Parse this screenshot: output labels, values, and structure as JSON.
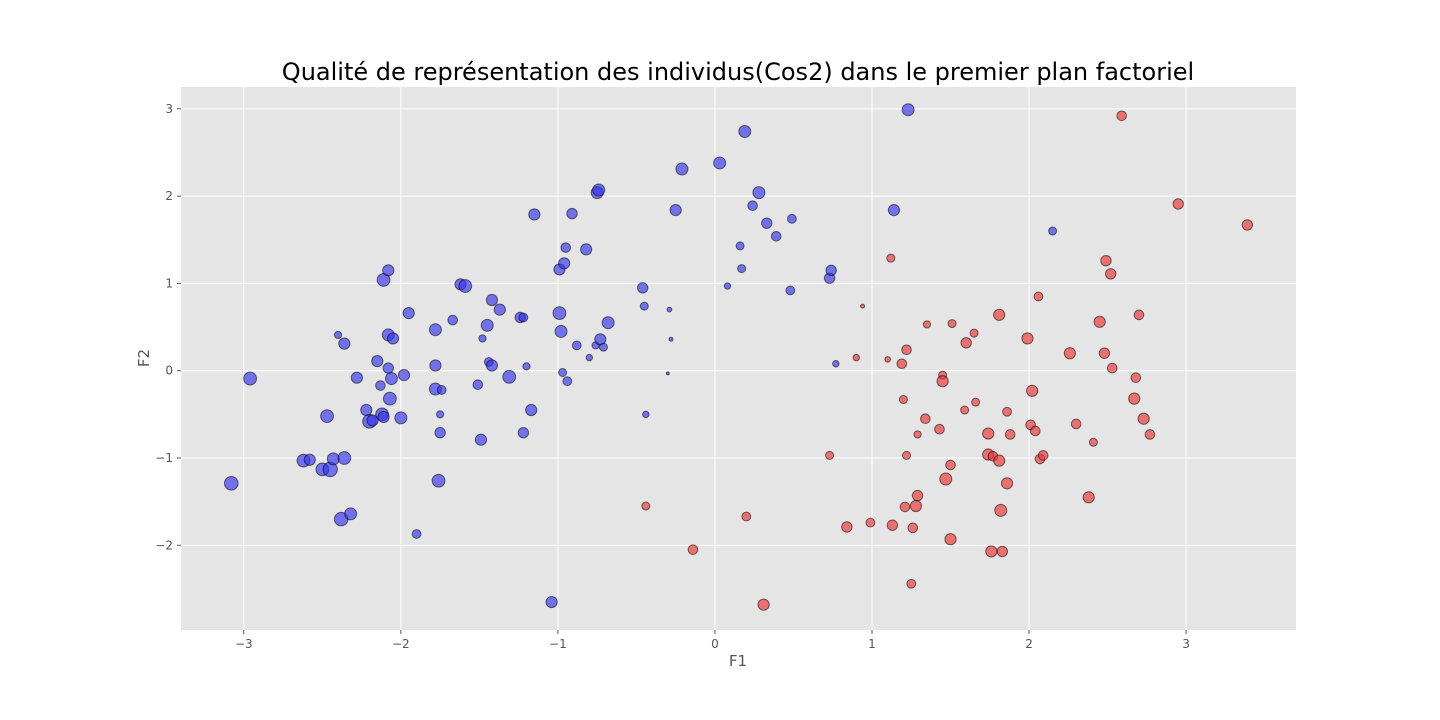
{
  "chart_data": {
    "type": "scatter",
    "title": "Qualité de représentation des individus(Cos2) dans le premier plan factoriel",
    "xlabel": "F1",
    "ylabel": "F2",
    "xlim": [
      -3.4,
      3.7
    ],
    "ylim": [
      -2.97,
      3.25
    ],
    "xticks": [
      -3,
      -2,
      -1,
      0,
      1,
      2,
      3
    ],
    "yticks": [
      -2,
      -1,
      0,
      1,
      2,
      3
    ],
    "xtick_labels": [
      "−3",
      "−2",
      "−1",
      "0",
      "1",
      "2",
      "3"
    ],
    "ytick_labels": [
      "−2",
      "−1",
      "0",
      "1",
      "2",
      "3"
    ],
    "grid": true,
    "marker_size_encodes": "Cos2",
    "colors": {
      "background": "#e5e5e5",
      "group_blue": "#3333ee",
      "group_red": "#ee3333"
    },
    "series": [
      {
        "color": "#3333ee",
        "points": [
          {
            "x": -3.08,
            "y": -1.29,
            "cos2": 0.85
          },
          {
            "x": -2.96,
            "y": -0.09,
            "cos2": 0.8
          },
          {
            "x": -2.62,
            "y": -1.03,
            "cos2": 0.8
          },
          {
            "x": -2.58,
            "y": -1.02,
            "cos2": 0.7
          },
          {
            "x": -2.5,
            "y": -1.13,
            "cos2": 0.8
          },
          {
            "x": -2.45,
            "y": -1.13,
            "cos2": 0.9
          },
          {
            "x": -2.47,
            "y": -0.52,
            "cos2": 0.8
          },
          {
            "x": -2.43,
            "y": -1.01,
            "cos2": 0.75
          },
          {
            "x": -2.4,
            "y": 0.41,
            "cos2": 0.45
          },
          {
            "x": -2.38,
            "y": -1.7,
            "cos2": 0.85
          },
          {
            "x": -2.36,
            "y": 0.31,
            "cos2": 0.7
          },
          {
            "x": -2.36,
            "y": -1.0,
            "cos2": 0.8
          },
          {
            "x": -2.32,
            "y": -1.64,
            "cos2": 0.75
          },
          {
            "x": -2.28,
            "y": -0.08,
            "cos2": 0.7
          },
          {
            "x": -2.22,
            "y": -0.45,
            "cos2": 0.7
          },
          {
            "x": -2.2,
            "y": -0.58,
            "cos2": 0.85
          },
          {
            "x": -2.18,
            "y": -0.57,
            "cos2": 0.7
          },
          {
            "x": -2.15,
            "y": 0.11,
            "cos2": 0.7
          },
          {
            "x": -2.13,
            "y": -0.17,
            "cos2": 0.6
          },
          {
            "x": -2.12,
            "y": -0.5,
            "cos2": 0.8
          },
          {
            "x": -2.11,
            "y": 1.04,
            "cos2": 0.8
          },
          {
            "x": -2.11,
            "y": -0.53,
            "cos2": 0.7
          },
          {
            "x": -2.08,
            "y": 0.41,
            "cos2": 0.75
          },
          {
            "x": -2.08,
            "y": 1.15,
            "cos2": 0.7
          },
          {
            "x": -2.08,
            "y": 0.03,
            "cos2": 0.65
          },
          {
            "x": -2.07,
            "y": -0.32,
            "cos2": 0.8
          },
          {
            "x": -2.06,
            "y": -0.09,
            "cos2": 0.75
          },
          {
            "x": -2.05,
            "y": 0.37,
            "cos2": 0.7
          },
          {
            "x": -2.0,
            "y": -0.54,
            "cos2": 0.75
          },
          {
            "x": -1.98,
            "y": -0.05,
            "cos2": 0.7
          },
          {
            "x": -1.95,
            "y": 0.66,
            "cos2": 0.7
          },
          {
            "x": -1.9,
            "y": -1.87,
            "cos2": 0.55
          },
          {
            "x": -1.78,
            "y": 0.47,
            "cos2": 0.75
          },
          {
            "x": -1.78,
            "y": 0.06,
            "cos2": 0.7
          },
          {
            "x": -1.78,
            "y": -0.21,
            "cos2": 0.75
          },
          {
            "x": -1.76,
            "y": -1.26,
            "cos2": 0.8
          },
          {
            "x": -1.75,
            "y": -0.71,
            "cos2": 0.65
          },
          {
            "x": -1.75,
            "y": -0.5,
            "cos2": 0.45
          },
          {
            "x": -1.74,
            "y": -0.22,
            "cos2": 0.55
          },
          {
            "x": -1.67,
            "y": 0.58,
            "cos2": 0.6
          },
          {
            "x": -1.62,
            "y": 0.99,
            "cos2": 0.7
          },
          {
            "x": -1.59,
            "y": 0.97,
            "cos2": 0.8
          },
          {
            "x": -1.51,
            "y": -0.16,
            "cos2": 0.6
          },
          {
            "x": -1.49,
            "y": -0.79,
            "cos2": 0.7
          },
          {
            "x": -1.48,
            "y": 0.37,
            "cos2": 0.45
          },
          {
            "x": -1.45,
            "y": 0.52,
            "cos2": 0.75
          },
          {
            "x": -1.44,
            "y": 0.1,
            "cos2": 0.55
          },
          {
            "x": -1.42,
            "y": 0.81,
            "cos2": 0.7
          },
          {
            "x": -1.42,
            "y": 0.06,
            "cos2": 0.7
          },
          {
            "x": -1.37,
            "y": 0.7,
            "cos2": 0.7
          },
          {
            "x": -1.31,
            "y": -0.07,
            "cos2": 0.8
          },
          {
            "x": -1.24,
            "y": 0.61,
            "cos2": 0.65
          },
          {
            "x": -1.22,
            "y": 0.61,
            "cos2": 0.55
          },
          {
            "x": -1.22,
            "y": -0.71,
            "cos2": 0.65
          },
          {
            "x": -1.2,
            "y": 0.05,
            "cos2": 0.45
          },
          {
            "x": -1.17,
            "y": -0.45,
            "cos2": 0.7
          },
          {
            "x": -1.15,
            "y": 1.79,
            "cos2": 0.7
          },
          {
            "x": -1.04,
            "y": -2.65,
            "cos2": 0.7
          },
          {
            "x": -0.99,
            "y": 0.66,
            "cos2": 0.8
          },
          {
            "x": -0.99,
            "y": 1.16,
            "cos2": 0.7
          },
          {
            "x": -0.98,
            "y": 0.45,
            "cos2": 0.75
          },
          {
            "x": -0.97,
            "y": -0.02,
            "cos2": 0.5
          },
          {
            "x": -0.96,
            "y": 1.23,
            "cos2": 0.7
          },
          {
            "x": -0.95,
            "y": 1.41,
            "cos2": 0.6
          },
          {
            "x": -0.94,
            "y": -0.12,
            "cos2": 0.55
          },
          {
            "x": -0.91,
            "y": 1.8,
            "cos2": 0.65
          },
          {
            "x": -0.88,
            "y": 0.29,
            "cos2": 0.55
          },
          {
            "x": -0.82,
            "y": 1.39,
            "cos2": 0.7
          },
          {
            "x": -0.8,
            "y": 0.15,
            "cos2": 0.4
          },
          {
            "x": -0.76,
            "y": 0.29,
            "cos2": 0.45
          },
          {
            "x": -0.75,
            "y": 2.04,
            "cos2": 0.75
          },
          {
            "x": -0.74,
            "y": 2.07,
            "cos2": 0.75
          },
          {
            "x": -0.73,
            "y": 0.36,
            "cos2": 0.7
          },
          {
            "x": -0.71,
            "y": 0.27,
            "cos2": 0.5
          },
          {
            "x": -0.68,
            "y": 0.55,
            "cos2": 0.75
          },
          {
            "x": -0.46,
            "y": 0.95,
            "cos2": 0.65
          },
          {
            "x": -0.45,
            "y": 0.74,
            "cos2": 0.5
          },
          {
            "x": -0.44,
            "y": -0.5,
            "cos2": 0.4
          },
          {
            "x": -0.29,
            "y": 0.7,
            "cos2": 0.3
          },
          {
            "x": -0.28,
            "y": 0.36,
            "cos2": 0.25
          },
          {
            "x": -0.3,
            "y": -0.03,
            "cos2": 0.12
          },
          {
            "x": -0.25,
            "y": 1.84,
            "cos2": 0.7
          },
          {
            "x": -0.21,
            "y": 2.31,
            "cos2": 0.75
          },
          {
            "x": 0.03,
            "y": 2.38,
            "cos2": 0.75
          },
          {
            "x": 0.08,
            "y": 0.97,
            "cos2": 0.4
          },
          {
            "x": 0.16,
            "y": 1.43,
            "cos2": 0.5
          },
          {
            "x": 0.17,
            "y": 1.17,
            "cos2": 0.5
          },
          {
            "x": 0.19,
            "y": 2.74,
            "cos2": 0.75
          },
          {
            "x": 0.24,
            "y": 1.89,
            "cos2": 0.6
          },
          {
            "x": 0.28,
            "y": 2.04,
            "cos2": 0.75
          },
          {
            "x": 0.33,
            "y": 1.69,
            "cos2": 0.65
          },
          {
            "x": 0.39,
            "y": 1.54,
            "cos2": 0.6
          },
          {
            "x": 0.48,
            "y": 0.92,
            "cos2": 0.55
          },
          {
            "x": 0.49,
            "y": 1.74,
            "cos2": 0.55
          },
          {
            "x": 0.73,
            "y": 1.06,
            "cos2": 0.65
          },
          {
            "x": 0.74,
            "y": 1.15,
            "cos2": 0.65
          },
          {
            "x": 0.77,
            "y": 0.08,
            "cos2": 0.4
          },
          {
            "x": 1.14,
            "y": 1.84,
            "cos2": 0.7
          },
          {
            "x": 1.23,
            "y": 2.99,
            "cos2": 0.75
          },
          {
            "x": 2.15,
            "y": 1.6,
            "cos2": 0.5
          }
        ]
      },
      {
        "color": "#ee3333",
        "points": [
          {
            "x": -0.44,
            "y": -1.55,
            "cos2": 0.5
          },
          {
            "x": -0.14,
            "y": -2.05,
            "cos2": 0.6
          },
          {
            "x": 0.2,
            "y": -1.67,
            "cos2": 0.55
          },
          {
            "x": 0.31,
            "y": -2.68,
            "cos2": 0.7
          },
          {
            "x": 0.73,
            "y": -0.97,
            "cos2": 0.5
          },
          {
            "x": 0.84,
            "y": -1.79,
            "cos2": 0.65
          },
          {
            "x": 0.9,
            "y": 0.15,
            "cos2": 0.4
          },
          {
            "x": 0.94,
            "y": 0.74,
            "cos2": 0.25
          },
          {
            "x": 0.99,
            "y": -1.74,
            "cos2": 0.55
          },
          {
            "x": 1.1,
            "y": 0.13,
            "cos2": 0.35
          },
          {
            "x": 1.12,
            "y": 1.29,
            "cos2": 0.5
          },
          {
            "x": 1.13,
            "y": -1.77,
            "cos2": 0.65
          },
          {
            "x": 1.19,
            "y": 0.08,
            "cos2": 0.6
          },
          {
            "x": 1.2,
            "y": -0.33,
            "cos2": 0.5
          },
          {
            "x": 1.21,
            "y": -1.56,
            "cos2": 0.6
          },
          {
            "x": 1.22,
            "y": 0.24,
            "cos2": 0.6
          },
          {
            "x": 1.22,
            "y": -0.97,
            "cos2": 0.5
          },
          {
            "x": 1.25,
            "y": -2.44,
            "cos2": 0.55
          },
          {
            "x": 1.26,
            "y": -1.8,
            "cos2": 0.6
          },
          {
            "x": 1.28,
            "y": -1.55,
            "cos2": 0.7
          },
          {
            "x": 1.29,
            "y": -1.43,
            "cos2": 0.65
          },
          {
            "x": 1.29,
            "y": -0.73,
            "cos2": 0.45
          },
          {
            "x": 1.34,
            "y": -0.55,
            "cos2": 0.6
          },
          {
            "x": 1.35,
            "y": 0.53,
            "cos2": 0.45
          },
          {
            "x": 1.43,
            "y": -0.67,
            "cos2": 0.6
          },
          {
            "x": 1.45,
            "y": -0.05,
            "cos2": 0.5
          },
          {
            "x": 1.45,
            "y": -0.12,
            "cos2": 0.7
          },
          {
            "x": 1.47,
            "y": -1.24,
            "cos2": 0.75
          },
          {
            "x": 1.5,
            "y": -1.08,
            "cos2": 0.6
          },
          {
            "x": 1.5,
            "y": -1.93,
            "cos2": 0.7
          },
          {
            "x": 1.51,
            "y": 0.54,
            "cos2": 0.5
          },
          {
            "x": 1.59,
            "y": -0.45,
            "cos2": 0.5
          },
          {
            "x": 1.6,
            "y": 0.32,
            "cos2": 0.65
          },
          {
            "x": 1.65,
            "y": 0.43,
            "cos2": 0.5
          },
          {
            "x": 1.66,
            "y": -0.36,
            "cos2": 0.5
          },
          {
            "x": 1.74,
            "y": -0.72,
            "cos2": 0.7
          },
          {
            "x": 1.74,
            "y": -0.96,
            "cos2": 0.7
          },
          {
            "x": 1.76,
            "y": -2.07,
            "cos2": 0.7
          },
          {
            "x": 1.77,
            "y": -0.98,
            "cos2": 0.6
          },
          {
            "x": 1.81,
            "y": 0.64,
            "cos2": 0.7
          },
          {
            "x": 1.81,
            "y": -1.03,
            "cos2": 0.7
          },
          {
            "x": 1.82,
            "y": -1.6,
            "cos2": 0.75
          },
          {
            "x": 1.83,
            "y": -2.07,
            "cos2": 0.65
          },
          {
            "x": 1.86,
            "y": -0.47,
            "cos2": 0.55
          },
          {
            "x": 1.86,
            "y": -1.29,
            "cos2": 0.7
          },
          {
            "x": 1.88,
            "y": -0.73,
            "cos2": 0.6
          },
          {
            "x": 1.99,
            "y": 0.37,
            "cos2": 0.7
          },
          {
            "x": 2.01,
            "y": -0.62,
            "cos2": 0.6
          },
          {
            "x": 2.02,
            "y": -0.23,
            "cos2": 0.7
          },
          {
            "x": 2.04,
            "y": -0.69,
            "cos2": 0.6
          },
          {
            "x": 2.06,
            "y": 0.85,
            "cos2": 0.55
          },
          {
            "x": 2.07,
            "y": -1.01,
            "cos2": 0.6
          },
          {
            "x": 2.09,
            "y": -0.97,
            "cos2": 0.6
          },
          {
            "x": 2.26,
            "y": 0.2,
            "cos2": 0.7
          },
          {
            "x": 2.3,
            "y": -0.61,
            "cos2": 0.6
          },
          {
            "x": 2.38,
            "y": -1.45,
            "cos2": 0.7
          },
          {
            "x": 2.41,
            "y": -0.82,
            "cos2": 0.5
          },
          {
            "x": 2.45,
            "y": 0.56,
            "cos2": 0.7
          },
          {
            "x": 2.48,
            "y": 0.2,
            "cos2": 0.65
          },
          {
            "x": 2.49,
            "y": 1.26,
            "cos2": 0.65
          },
          {
            "x": 2.52,
            "y": 1.11,
            "cos2": 0.65
          },
          {
            "x": 2.53,
            "y": 0.03,
            "cos2": 0.6
          },
          {
            "x": 2.59,
            "y": 2.92,
            "cos2": 0.6
          },
          {
            "x": 2.67,
            "y": -0.32,
            "cos2": 0.7
          },
          {
            "x": 2.68,
            "y": -0.08,
            "cos2": 0.6
          },
          {
            "x": 2.7,
            "y": 0.64,
            "cos2": 0.6
          },
          {
            "x": 2.73,
            "y": -0.55,
            "cos2": 0.7
          },
          {
            "x": 2.77,
            "y": -0.73,
            "cos2": 0.6
          },
          {
            "x": 2.95,
            "y": 1.91,
            "cos2": 0.65
          },
          {
            "x": 3.39,
            "y": 1.67,
            "cos2": 0.65
          }
        ]
      }
    ]
  }
}
